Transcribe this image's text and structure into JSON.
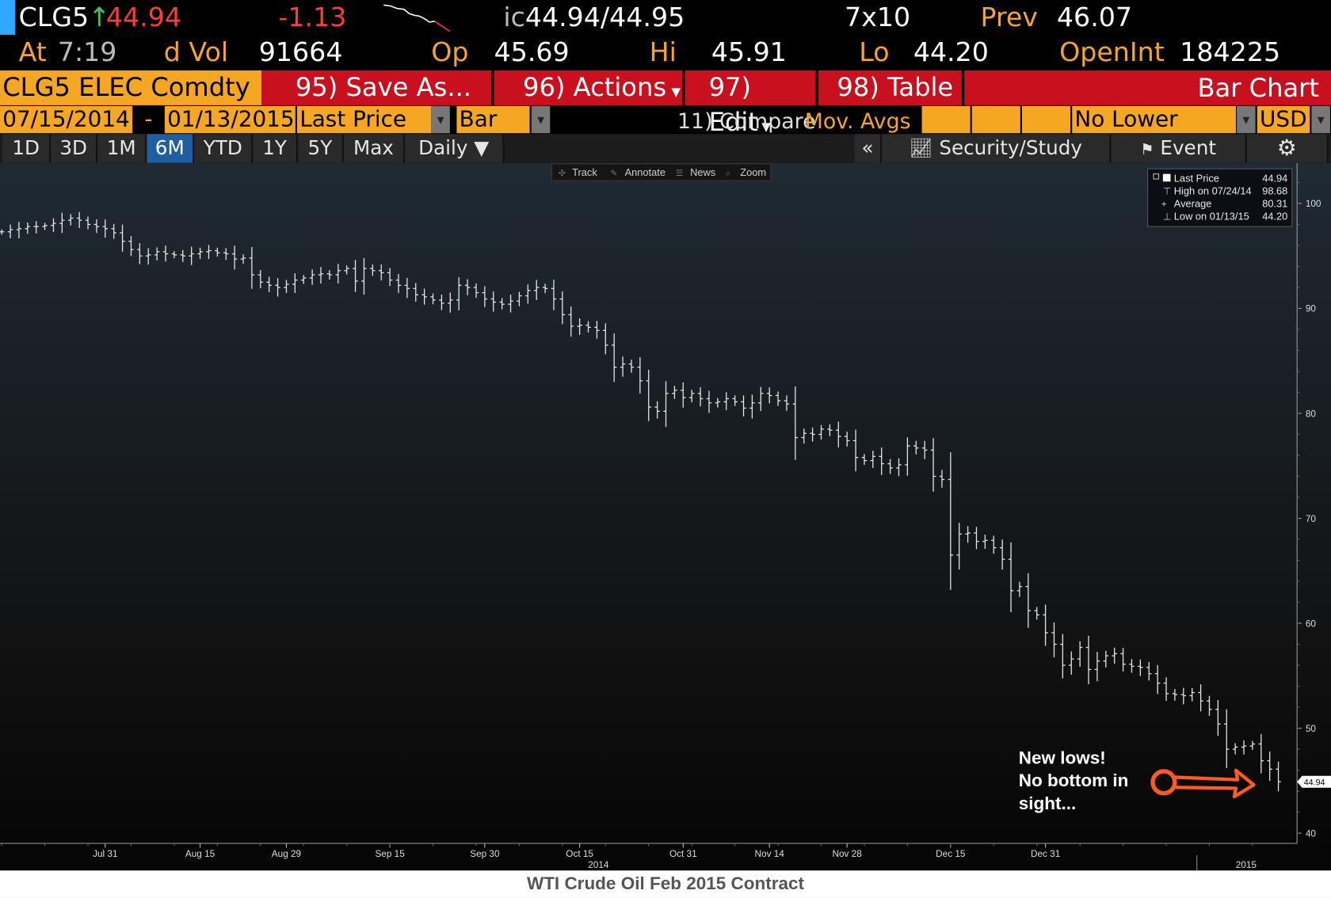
{
  "ticker": {
    "symbol": "CLG5",
    "price": "44.94",
    "change": "-1.13",
    "bid_ask_prefix": "ic",
    "bid_ask": "44.94/44.95",
    "size": "7x10",
    "prev_label": "Prev",
    "prev": "46.07"
  },
  "stats": {
    "at_label": "At",
    "time": "7:19",
    "vol_label": "d Vol",
    "vol": "91664",
    "op_label": "Op",
    "op": "45.69",
    "hi_label": "Hi",
    "hi": "45.91",
    "lo_label": "Lo",
    "lo": "44.20",
    "oi_label": "OpenInt",
    "oi": "184225"
  },
  "toolbar": {
    "security": "CLG5 ELEC Comdty",
    "save": "95) Save As...",
    "actions": "96) Actions",
    "edit": "97) Edit",
    "table": "98) Table",
    "title": "Bar Chart"
  },
  "settings": {
    "start": "07/15/2014",
    "dash": "-",
    "end": "01/13/2015",
    "field": "Last Price",
    "style": "Bar",
    "compare": "11) Compare",
    "movavg": "Mov. Avgs",
    "lower": "No Lower Chart",
    "currency": "USD"
  },
  "periods": [
    "1D",
    "3D",
    "1M",
    "6M",
    "YTD",
    "1Y",
    "5Y",
    "Max",
    "Daily ▼"
  ],
  "selected_period": "6M",
  "right_tools": {
    "collapse": "«",
    "security_study": "Security/Study",
    "event": "Event",
    "settings_icon": "gear-icon"
  },
  "chart_tools": [
    "Track",
    "Annotate",
    "News",
    "Zoom"
  ],
  "legend": {
    "rows": [
      {
        "label": "Last Price",
        "value": "44.94"
      },
      {
        "label": "High on 07/24/14",
        "value": "98.68"
      },
      {
        "label": "Average",
        "value": "80.31"
      },
      {
        "label": "Low on 01/13/15",
        "value": "44.20"
      }
    ]
  },
  "annotation": {
    "line1": "New lows!",
    "line2": "No bottom in",
    "line3": "sight...",
    "color": "#ff5a1f"
  },
  "last_price_tag": "44.94",
  "footer_title": "WTI Crude Oil Feb 2015 Contract",
  "colors": {
    "orange": "#f5a623",
    "red": "#c8101e",
    "tab_selected": "#1f5ea0",
    "price_up": "#ff3b3b"
  },
  "chart_data": {
    "type": "bar",
    "ohlc": true,
    "ylim": [
      40,
      105
    ],
    "y_ticks": [
      40,
      50,
      60,
      70,
      80,
      90,
      100
    ],
    "x_ticks": [
      "Jul 31",
      "Aug 15",
      "Aug 29",
      "Sep 15",
      "Sep 30",
      "Oct 15",
      "Oct 31",
      "Nov 14",
      "Nov 28",
      "Dec 15",
      "Dec 31"
    ],
    "year_labels": [
      "2014",
      "2015"
    ],
    "legend_placement": "top-right",
    "series": [
      {
        "values": [
          97.3,
          97.5,
          97.6,
          97.8,
          97.8,
          97.9,
          98.1,
          98.4,
          98.6,
          98.4,
          98.0,
          97.8,
          97.6,
          97.2,
          96.4,
          95.6,
          95.0,
          95.1,
          95.4,
          95.2,
          95.1,
          95.0,
          95.2,
          95.4,
          95.5,
          95.3,
          95.2,
          94.7,
          94.8,
          93.2,
          92.5,
          92.2,
          92.0,
          92.3,
          92.7,
          92.9,
          93.2,
          93.3,
          93.2,
          93.6,
          93.8,
          92.6,
          93.8,
          93.6,
          93.4,
          92.7,
          92.2,
          91.9,
          91.3,
          91.1,
          90.8,
          90.5,
          90.8,
          92.2,
          92.0,
          91.5,
          90.9,
          90.6,
          90.4,
          90.7,
          91.2,
          91.7,
          92.0,
          91.9,
          90.9,
          89.4,
          88.3,
          88.4,
          88.2,
          87.9,
          86.5,
          84.4,
          84.7,
          84.4,
          83.1,
          80.6,
          80.2,
          81.9,
          82.2,
          81.5,
          81.9,
          81.4,
          81.0,
          81.1,
          81.4,
          81.1,
          80.5,
          81.0,
          81.9,
          81.7,
          81.2,
          80.9,
          77.7,
          78.1,
          78.0,
          78.5,
          78.4,
          77.8,
          77.4,
          75.8,
          75.5,
          75.9,
          75.2,
          74.8,
          75.1,
          76.9,
          76.7,
          76.5,
          74.0,
          73.7,
          66.5,
          68.5,
          68.6,
          67.8,
          67.9,
          67.2,
          66.1,
          63.1,
          63.5,
          61.2,
          60.8,
          59.1,
          58.0,
          56.0,
          56.6,
          57.7,
          55.6,
          56.4,
          56.9,
          57.1,
          56.1,
          55.9,
          55.8,
          55.2,
          54.3,
          53.3,
          53.2,
          53.1,
          53.4,
          52.6,
          51.8,
          50.4,
          48.0,
          48.2,
          48.3,
          48.5,
          46.9,
          46.1,
          44.9
        ]
      }
    ]
  }
}
